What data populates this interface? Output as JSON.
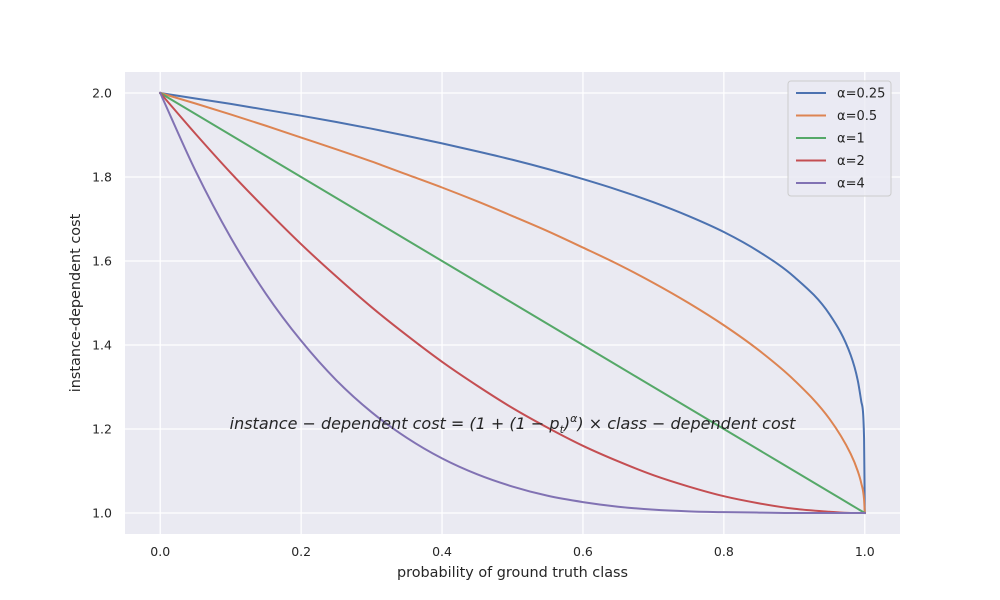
{
  "chart_data": {
    "type": "line",
    "xlabel": "probability of ground truth class",
    "ylabel": "instance-dependent cost",
    "xlim": [
      -0.05,
      1.05
    ],
    "ylim": [
      0.95,
      2.05
    ],
    "xticks": [
      "0.0",
      "0.2",
      "0.4",
      "0.6",
      "0.8",
      "1.0"
    ],
    "yticks": [
      "1.0",
      "1.2",
      "1.4",
      "1.6",
      "1.8",
      "2.0"
    ],
    "grid": true,
    "legend_position": "upper right",
    "background_color": "#eaeaf2",
    "x": [
      0,
      0.05,
      0.1,
      0.15,
      0.2,
      0.25,
      0.3,
      0.35,
      0.4,
      0.45,
      0.5,
      0.55,
      0.6,
      0.65,
      0.7,
      0.75,
      0.8,
      0.85,
      0.9,
      0.95,
      0.98,
      0.99,
      0.995,
      0.999,
      1.0
    ],
    "series": [
      {
        "name": "α=0.25",
        "color": "#4c72b0",
        "values": [
          2.0,
          1.987,
          1.974,
          1.96,
          1.946,
          1.931,
          1.915,
          1.898,
          1.88,
          1.861,
          1.841,
          1.819,
          1.795,
          1.769,
          1.74,
          1.707,
          1.669,
          1.622,
          1.562,
          1.473,
          1.376,
          1.316,
          1.266,
          1.178,
          1.0
        ]
      },
      {
        "name": "α=0.5",
        "color": "#dd8452",
        "values": [
          2.0,
          1.975,
          1.949,
          1.922,
          1.894,
          1.866,
          1.837,
          1.806,
          1.775,
          1.742,
          1.707,
          1.671,
          1.632,
          1.592,
          1.548,
          1.5,
          1.447,
          1.387,
          1.316,
          1.224,
          1.141,
          1.1,
          1.071,
          1.032,
          1.0
        ]
      },
      {
        "name": "α=1",
        "color": "#55a868",
        "values": [
          2.0,
          1.95,
          1.9,
          1.85,
          1.8,
          1.75,
          1.7,
          1.65,
          1.6,
          1.55,
          1.5,
          1.45,
          1.4,
          1.35,
          1.3,
          1.25,
          1.2,
          1.15,
          1.1,
          1.05,
          1.02,
          1.01,
          1.005,
          1.001,
          1.0
        ]
      },
      {
        "name": "α=2",
        "color": "#c44e52",
        "values": [
          2.0,
          1.903,
          1.81,
          1.723,
          1.64,
          1.563,
          1.49,
          1.423,
          1.36,
          1.303,
          1.25,
          1.203,
          1.16,
          1.123,
          1.09,
          1.063,
          1.04,
          1.023,
          1.01,
          1.003,
          1.0,
          1.0,
          1.0,
          1.0,
          1.0
        ]
      },
      {
        "name": "α=4",
        "color": "#8172b3",
        "values": [
          2.0,
          1.815,
          1.656,
          1.522,
          1.41,
          1.316,
          1.24,
          1.179,
          1.13,
          1.092,
          1.063,
          1.041,
          1.026,
          1.015,
          1.008,
          1.004,
          1.002,
          1.001,
          1.0,
          1.0,
          1.0,
          1.0,
          1.0,
          1.0,
          1.0
        ]
      }
    ],
    "annotation": {
      "lead": "instance − dependent cost = (1 + (1 − p",
      "sub": "t",
      "close": ")",
      "sup": "α",
      "tail": ") × class − dependent cost"
    }
  }
}
